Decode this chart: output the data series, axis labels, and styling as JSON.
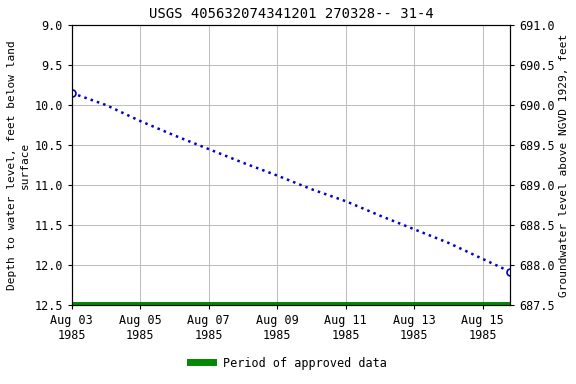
{
  "title": "USGS 405632074341201 270328-- 31-4",
  "ylabel_left": "Depth to water level, feet below land\nsurface",
  "ylabel_right": "Groundwater level above NGVD 1929, feet",
  "ylim_left": [
    12.5,
    9.0
  ],
  "ylim_right": [
    687.5,
    691.0
  ],
  "yticks_left": [
    9.0,
    9.5,
    10.0,
    10.5,
    11.0,
    11.5,
    12.0,
    12.5
  ],
  "yticks_right": [
    687.5,
    688.0,
    688.5,
    689.0,
    689.5,
    690.0,
    690.5,
    691.0
  ],
  "data_x_days": [
    0,
    1,
    2,
    3,
    4,
    5,
    6,
    7,
    8,
    9,
    10,
    11,
    12,
    12.8
  ],
  "data_y_depth": [
    9.85,
    10.0,
    10.2,
    10.38,
    10.55,
    10.72,
    10.88,
    11.05,
    11.2,
    11.38,
    11.55,
    11.72,
    11.92,
    12.08
  ],
  "xlim": [
    0,
    12.8
  ],
  "marker_indices": [
    0,
    13
  ],
  "line_color": "#0000cc",
  "marker_color": "#0000cc",
  "green_bar_color": "#008800",
  "background_color": "#ffffff",
  "plot_bg_color": "#ffffff",
  "grid_color": "#bbbbbb",
  "title_fontsize": 10,
  "label_fontsize": 8,
  "tick_fontsize": 8.5,
  "legend_label": "Period of approved data",
  "xtick_dates": [
    "Aug 03\n1985",
    "Aug 05\n1985",
    "Aug 07\n1985",
    "Aug 09\n1985",
    "Aug 11\n1985",
    "Aug 13\n1985",
    "Aug 15\n1985"
  ],
  "xtick_offsets": [
    0,
    2,
    4,
    6,
    8,
    10,
    12
  ]
}
